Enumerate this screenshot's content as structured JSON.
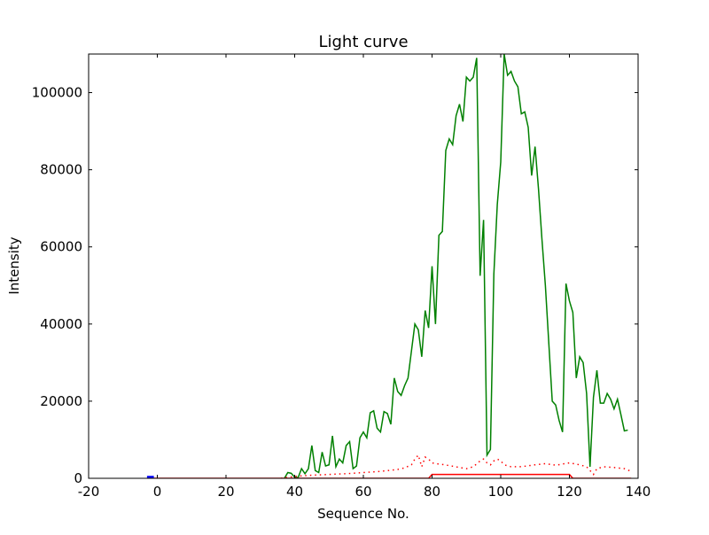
{
  "chart_data": {
    "type": "line",
    "title": "Light curve",
    "xlabel": "Sequence No.",
    "ylabel": "Intensity",
    "xlim": [
      -20,
      140
    ],
    "ylim": [
      0,
      110000
    ],
    "xticks": [
      -20,
      0,
      20,
      40,
      60,
      80,
      100,
      120,
      140
    ],
    "yticks": [
      0,
      20000,
      40000,
      60000,
      80000,
      100000
    ],
    "grid": false,
    "colors": {
      "green": "#008000",
      "red": "#ff0000",
      "blue": "#0000ff"
    },
    "series": [
      {
        "name": "intensity",
        "style": "solid",
        "color": "#008000",
        "x": [
          37,
          38,
          39,
          40,
          41,
          42,
          43,
          44,
          45,
          46,
          47,
          48,
          49,
          50,
          51,
          52,
          53,
          54,
          55,
          56,
          57,
          58,
          59,
          60,
          61,
          62,
          63,
          64,
          65,
          66,
          67,
          68,
          69,
          70,
          71,
          72,
          73,
          74,
          75,
          76,
          77,
          78,
          79,
          80,
          81,
          82,
          83,
          84,
          85,
          86,
          87,
          88,
          89,
          90,
          91,
          92,
          93,
          94,
          95,
          96,
          97,
          98,
          99,
          100,
          101,
          102,
          103,
          104,
          105,
          106,
          107,
          108,
          109,
          110,
          111,
          112,
          113,
          114,
          115,
          116,
          117,
          118,
          119,
          120,
          121,
          122,
          123,
          124,
          125,
          126,
          127,
          128,
          129,
          130,
          131,
          132,
          133,
          134,
          135,
          136,
          137
        ],
        "y": [
          0,
          1500,
          1300,
          300,
          200,
          2500,
          1200,
          2500,
          8500,
          2000,
          1500,
          6800,
          3200,
          3500,
          11000,
          3000,
          5000,
          4000,
          8500,
          9500,
          2500,
          3200,
          10500,
          12000,
          10500,
          17000,
          17500,
          13000,
          12000,
          17300,
          16800,
          14000,
          26000,
          22500,
          21500,
          24000,
          26000,
          33000,
          40000,
          38500,
          31500,
          43500,
          39000,
          55000,
          40000,
          63000,
          64000,
          85000,
          88000,
          86500,
          94000,
          97000,
          92500,
          104000,
          103000,
          104000,
          109000,
          52500,
          67000,
          6000,
          7500,
          53000,
          71000,
          82000,
          110000,
          104500,
          105500,
          103000,
          101500,
          94500,
          95000,
          91000,
          78500,
          86000,
          75000,
          62000,
          50000,
          35000,
          20000,
          19000,
          15000,
          12000,
          50500,
          46000,
          43000,
          26000,
          31500,
          30000,
          22000,
          3000,
          21000,
          28000,
          19500,
          19500,
          22000,
          20500,
          18000,
          20500,
          16500,
          12300,
          12500
        ]
      },
      {
        "name": "error",
        "style": "dotted",
        "color": "#ff0000",
        "x": [
          36,
          40,
          45,
          50,
          55,
          60,
          65,
          70,
          72,
          74,
          75,
          76,
          77,
          78,
          79,
          80,
          81,
          83,
          85,
          88,
          90,
          92,
          94,
          95,
          96,
          97,
          98,
          99,
          100,
          101,
          103,
          106,
          110,
          113,
          116,
          120,
          123,
          125,
          126,
          127,
          128,
          130,
          133,
          136,
          138
        ],
        "y": [
          0,
          500,
          800,
          1000,
          1200,
          1500,
          1800,
          2300,
          2700,
          3500,
          5000,
          6000,
          3000,
          5500,
          5000,
          4000,
          3800,
          3600,
          3300,
          2800,
          2500,
          3000,
          4500,
          5000,
          4000,
          3500,
          4500,
          5000,
          4500,
          3500,
          3000,
          3000,
          3500,
          3800,
          3400,
          4000,
          3500,
          3000,
          2000,
          1000,
          2500,
          3000,
          2800,
          2500,
          1800
        ]
      },
      {
        "name": "flag",
        "style": "solid",
        "color": "#ff0000",
        "x": [
          -1,
          79,
          80,
          120,
          121,
          138
        ],
        "y": [
          0,
          0,
          1000,
          1000,
          0,
          0
        ]
      },
      {
        "name": "marker",
        "style": "solid",
        "color": "#0000ff",
        "x": [
          -3,
          -1
        ],
        "y": [
          300,
          300
        ]
      }
    ]
  }
}
